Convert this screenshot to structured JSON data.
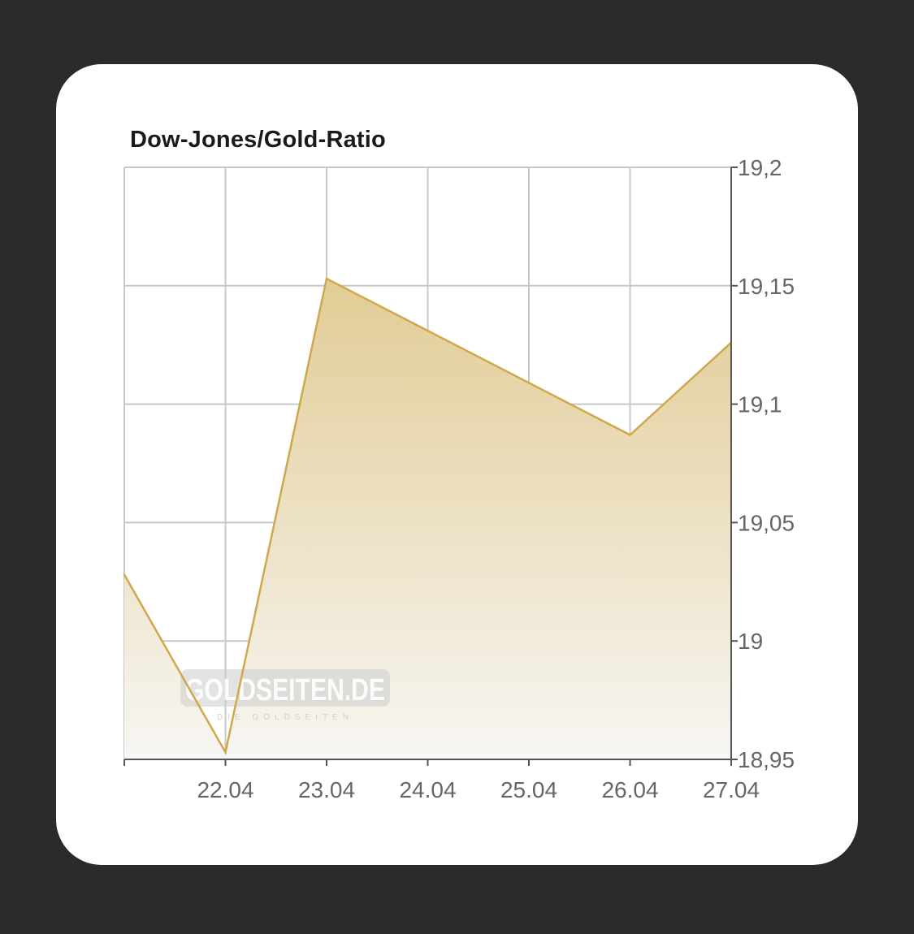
{
  "colors": {
    "background": "#2b2b2d",
    "card": "#ffffff",
    "line": "#cfa84e",
    "area_top": "#e2cc95",
    "area_bottom": "#f7f6f3",
    "grid": "#c8c8c8",
    "axis": "#555555"
  },
  "watermark": {
    "text": "GOLDSEITEN.DE",
    "tagline": "DIE GOLDSEITEN"
  },
  "chart_data": {
    "type": "area",
    "title": "Dow-Jones/Gold-Ratio",
    "xlabel": "",
    "ylabel": "",
    "x_labels": [
      "22.04",
      "23.04",
      "24.04",
      "25.04",
      "26.04",
      "27.04"
    ],
    "y_ticks": [
      "19,2",
      "19,15",
      "19,1",
      "19,05",
      "19",
      "18,95"
    ],
    "ylim": [
      18.95,
      19.2
    ],
    "y_axis_side": "right",
    "grid": true,
    "legend": "none",
    "points": [
      {
        "x": "21.04",
        "y": 19.028
      },
      {
        "x": "22.04",
        "y": 18.953
      },
      {
        "x": "23.04",
        "y": 19.153
      },
      {
        "x": "26.04",
        "y": 19.087
      },
      {
        "x": "27.04",
        "y": 19.126
      }
    ]
  }
}
